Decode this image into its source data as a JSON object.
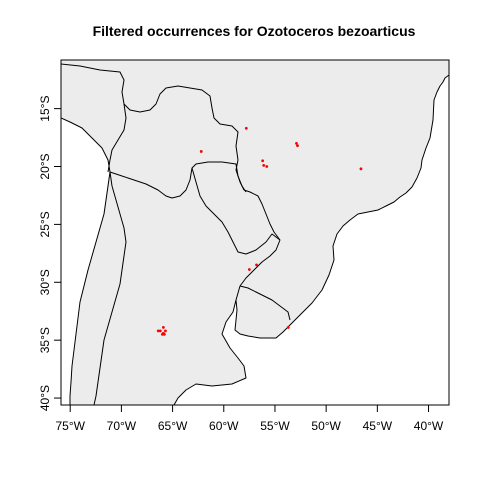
{
  "title": "Filtered occurrences for Ozotoceros bezoarticus",
  "map": {
    "lon_range": [
      -75.9,
      -38.0
    ],
    "lat_range": [
      -40.6,
      -10.8
    ],
    "x_ticks": [
      -75,
      -70,
      -65,
      -60,
      -55,
      -50,
      -45,
      -40
    ],
    "x_tick_labels": [
      "75°W",
      "70°W",
      "65°W",
      "60°W",
      "55°W",
      "50°W",
      "45°W",
      "40°W"
    ],
    "y_ticks": [
      -15,
      -20,
      -25,
      -30,
      -35,
      -40
    ],
    "y_tick_labels": [
      "15°S",
      "20°S",
      "25°S",
      "30°S",
      "35°S",
      "40°S"
    ],
    "land_color": "#ececec",
    "point_color": "#ff0000"
  },
  "chart_data": {
    "type": "scatter",
    "title": "Filtered occurrences for Ozotoceros bezoarticus",
    "xlabel": "",
    "ylabel": "",
    "xlim": [
      -75.9,
      -38.0
    ],
    "ylim": [
      -40.6,
      -10.8
    ],
    "grid": false,
    "points": [
      {
        "lon": -57.8,
        "lat": -16.7
      },
      {
        "lon": -62.2,
        "lat": -18.7
      },
      {
        "lon": -52.9,
        "lat": -18.0
      },
      {
        "lon": -52.8,
        "lat": -18.2
      },
      {
        "lon": -56.2,
        "lat": -19.5
      },
      {
        "lon": -56.1,
        "lat": -19.9
      },
      {
        "lon": -55.8,
        "lat": -20.0
      },
      {
        "lon": -46.6,
        "lat": -20.2
      },
      {
        "lon": -56.8,
        "lat": -28.5
      },
      {
        "lon": -57.5,
        "lat": -28.9
      },
      {
        "lon": -53.7,
        "lat": -33.9
      },
      {
        "lon": -65.9,
        "lat": -33.9
      },
      {
        "lon": -66.2,
        "lat": -34.2
      },
      {
        "lon": -65.7,
        "lat": -34.2
      },
      {
        "lon": -65.9,
        "lat": -34.4
      },
      {
        "lon": -66.0,
        "lat": -34.5
      },
      {
        "lon": -65.8,
        "lat": -34.5
      },
      {
        "lon": -66.4,
        "lat": -34.2
      }
    ]
  }
}
